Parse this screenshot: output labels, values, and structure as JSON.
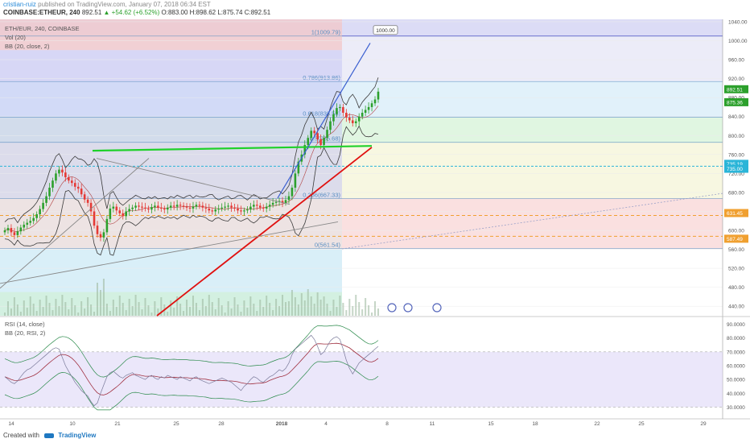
{
  "header": {
    "user": "cristian-ruiz",
    "published": "published on TradingView.com, January 07, 2018 06:34 EST",
    "symbol": "COINBASE:ETHEUR, 240",
    "last": "892.51",
    "change": "▲ +54.62 (+6.52%)",
    "open": "O:883.00",
    "high": "H:898.62",
    "low": "L:875.74",
    "close": "C:892.51"
  },
  "indicators": {
    "title": "ETH/EUR, 240, COINBASE",
    "vol": "Vol (20)",
    "bb": "BB (20, close, 2)",
    "rsi": "RSI (14, close)",
    "rsi_bb": "BB (20, RSI, 2)"
  },
  "footer": {
    "created": "Created with",
    "brand": "TradingView"
  },
  "colors": {
    "up": "#2ca02c",
    "down": "#e53935",
    "bb": "#3a3a3a",
    "fib": "#5a8fc2",
    "green_line": "#1fd12a",
    "red_line": "#e0100f",
    "blue_line": "#3a5fd0",
    "price_line": "#2bb5d8",
    "orange": "#f0a030",
    "rsi_band": "#d8cff5"
  },
  "chart_data": {
    "type": "candlestick",
    "symbol": "ETH/EUR",
    "interval": "240",
    "exchange": "COINBASE",
    "ylim": [
      420,
      1045
    ],
    "y_ticks": [
      440,
      480,
      520,
      560,
      600,
      640,
      680,
      720,
      760,
      800,
      840,
      880,
      920,
      960,
      1000,
      1040
    ],
    "x_ticks": [
      "14",
      "10",
      "21",
      "25",
      "28",
      "2018",
      "4",
      "8",
      "11",
      "15",
      "18",
      "22",
      "25",
      "29"
    ],
    "fib_levels": [
      {
        "label": "0(561.54)",
        "value": 561.54
      },
      {
        "label": "0.236(667.33)",
        "value": 667.33
      },
      {
        "label": "0.5(785.68)",
        "value": 785.68
      },
      {
        "label": "0.618(838.58)",
        "value": 838.58
      },
      {
        "label": "0.786(913.86)",
        "value": 913.86
      },
      {
        "label": "1(1009.79)",
        "value": 1009.79
      }
    ],
    "price_tags": [
      {
        "label": "892.51",
        "value": 892.51,
        "color": "#2ca02c"
      },
      {
        "label": "875.36",
        "value": 875.36,
        "color": "#2ca02c"
      },
      {
        "label": "735.19",
        "value": 735.19,
        "color": "#2bb5d8"
      },
      {
        "label": "735.00",
        "value": 735.0,
        "color": "#2bb5d8"
      },
      {
        "label": "631.45",
        "value": 631.45,
        "color": "#f0a030"
      },
      {
        "label": "587.49",
        "value": 587.49,
        "color": "#f0a030"
      }
    ],
    "target_label": "1000.00",
    "close_series": [
      600,
      605,
      596,
      590,
      598,
      606,
      612,
      616,
      620,
      626,
      634,
      645,
      658,
      672,
      690,
      705,
      720,
      728,
      722,
      712,
      705,
      700,
      692,
      688,
      676,
      665,
      658,
      640,
      610,
      592,
      585,
      596,
      624,
      646,
      650,
      642,
      636,
      630,
      640,
      645,
      648,
      652,
      650,
      648,
      646,
      644,
      649,
      652,
      648,
      646,
      644,
      648,
      652,
      650,
      654,
      652,
      650,
      648,
      646,
      650,
      654,
      652,
      648,
      646,
      642,
      640,
      644,
      646,
      648,
      650,
      652,
      648,
      646,
      642,
      640,
      642,
      644,
      650,
      654,
      652,
      648,
      646,
      650,
      654,
      658,
      660,
      662,
      658,
      664,
      672,
      690,
      720,
      745,
      760,
      780,
      795,
      810,
      805,
      792,
      780,
      795,
      812,
      830,
      845,
      858,
      860,
      848,
      838,
      832,
      826,
      830,
      840,
      848,
      854,
      860,
      868,
      876,
      892.51
    ],
    "rsi": {
      "ylim": [
        25,
        95
      ],
      "ticks": [
        "90.0000",
        "80.0000",
        "70.0000",
        "60.0000",
        "50.0000",
        "40.0000",
        "30.0000"
      ],
      "overbought": 70,
      "oversold": 30,
      "values": [
        52,
        50,
        48,
        47,
        49,
        52,
        55,
        57,
        58,
        60,
        62,
        64,
        66,
        68,
        70,
        72,
        73,
        72,
        66,
        60,
        56,
        52,
        48,
        45,
        42,
        40,
        38,
        34,
        31,
        33,
        40,
        46,
        52,
        55,
        56,
        54,
        52,
        51,
        53,
        54,
        55,
        53,
        52,
        51,
        50,
        52,
        53,
        51,
        50,
        52,
        51,
        53,
        52,
        51,
        50,
        52,
        51,
        50,
        49,
        51,
        52,
        50,
        49,
        48,
        47,
        48,
        49,
        50,
        51,
        50,
        49,
        48,
        46,
        44,
        42,
        45,
        47,
        50,
        52,
        51,
        49,
        48,
        50,
        52,
        53,
        55,
        57,
        56,
        58,
        62,
        68,
        72,
        74,
        76,
        78,
        80,
        82,
        79,
        74,
        68,
        70,
        74,
        78,
        80,
        81,
        79,
        72,
        64,
        58,
        54,
        58,
        62,
        64,
        66,
        68,
        70,
        72,
        74
      ]
    }
  }
}
